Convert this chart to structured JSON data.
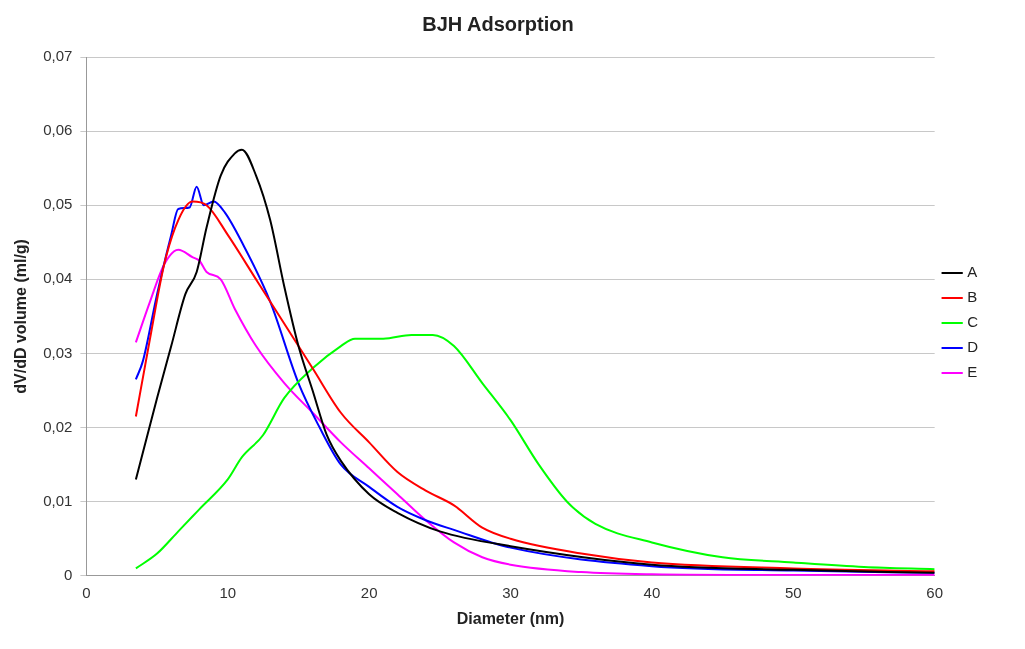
{
  "chart_data": {
    "type": "line",
    "title": "BJH Adsorption",
    "xlabel": "Diameter (nm)",
    "ylabel": "dV/dD volume (ml/g)",
    "xlim": [
      0,
      60
    ],
    "xticks": [
      0,
      10,
      20,
      30,
      40,
      50,
      60
    ],
    "ylim": [
      0,
      0.07
    ],
    "yticks": [
      0,
      {
        "value": 0.01,
        "label": "0,01"
      },
      {
        "value": 0.02,
        "label": "0,02"
      },
      {
        "value": 0.03,
        "label": "0,03"
      },
      {
        "value": 0.04,
        "label": "0,04"
      },
      {
        "value": 0.05,
        "label": "0,05"
      },
      {
        "value": 0.06,
        "label": "0,06"
      },
      {
        "value": 0.07,
        "label": "0,07"
      }
    ],
    "grid": "y",
    "legend": "right",
    "marker": "none",
    "line_style": "solid",
    "series": [
      {
        "name": "A",
        "color": "#000000",
        "x": [
          3.5,
          5,
          6,
          7,
          7.8,
          8.5,
          9.5,
          10.5,
          11,
          12,
          13,
          14,
          15,
          16,
          17,
          18,
          20,
          22,
          25,
          30,
          40,
          50,
          60
        ],
        "values": [
          0.013,
          0.024,
          0.031,
          0.038,
          0.041,
          0.047,
          0.054,
          0.057,
          0.0575,
          0.054,
          0.048,
          0.039,
          0.031,
          0.025,
          0.019,
          0.0155,
          0.011,
          0.0085,
          0.006,
          0.004,
          0.0015,
          0.0008,
          0.0004
        ]
      },
      {
        "name": "B",
        "color": "#ff0000",
        "x": [
          3.5,
          4.5,
          5.5,
          6.5,
          7.5,
          8.5,
          10,
          12,
          14,
          16,
          18,
          20,
          22,
          24,
          26,
          28,
          30,
          35,
          40,
          50,
          60
        ],
        "values": [
          0.0215,
          0.032,
          0.042,
          0.048,
          0.0505,
          0.05,
          0.046,
          0.04,
          0.034,
          0.028,
          0.022,
          0.018,
          0.014,
          0.0115,
          0.0095,
          0.0065,
          0.005,
          0.003,
          0.0018,
          0.001,
          0.0006
        ]
      },
      {
        "name": "C",
        "color": "#00ff00",
        "x": [
          3.5,
          5,
          6.5,
          7.5,
          8,
          10,
          11,
          12.5,
          14,
          16,
          18,
          19,
          21,
          23,
          24.5,
          26,
          28,
          30,
          32,
          34,
          36,
          40,
          45,
          50,
          55,
          60
        ],
        "values": [
          0.001,
          0.003,
          0.006,
          0.008,
          0.009,
          0.013,
          0.016,
          0.019,
          0.024,
          0.028,
          0.031,
          0.032,
          0.032,
          0.0325,
          0.0325,
          0.031,
          0.026,
          0.021,
          0.015,
          0.01,
          0.007,
          0.0045,
          0.0025,
          0.0018,
          0.0012,
          0.0009
        ]
      },
      {
        "name": "D",
        "color": "#0000ff",
        "x": [
          3.5,
          4,
          5,
          6,
          6.5,
          7.3,
          7.8,
          8.3,
          9,
          9.8,
          11,
          13,
          15,
          16.5,
          18,
          20,
          22,
          24,
          26,
          30,
          40,
          50,
          60
        ],
        "values": [
          0.0265,
          0.029,
          0.038,
          0.046,
          0.0495,
          0.0497,
          0.0525,
          0.05,
          0.0505,
          0.049,
          0.045,
          0.037,
          0.026,
          0.02,
          0.015,
          0.012,
          0.0093,
          0.0075,
          0.0062,
          0.0038,
          0.0013,
          0.0007,
          0.0004
        ]
      },
      {
        "name": "E",
        "color": "#ff00ff",
        "x": [
          3.5,
          4.5,
          5.5,
          6.5,
          7.5,
          8,
          8.5,
          9.5,
          10.5,
          12,
          14,
          16,
          18,
          20,
          22,
          24,
          26,
          28,
          30,
          35,
          40,
          50,
          60
        ],
        "values": [
          0.0315,
          0.037,
          0.042,
          0.044,
          0.043,
          0.0425,
          0.041,
          0.04,
          0.036,
          0.031,
          0.026,
          0.022,
          0.018,
          0.0145,
          0.011,
          0.0075,
          0.0045,
          0.0025,
          0.0015,
          0.0005,
          0.0002,
          0.0001,
          0.0001
        ]
      }
    ]
  }
}
